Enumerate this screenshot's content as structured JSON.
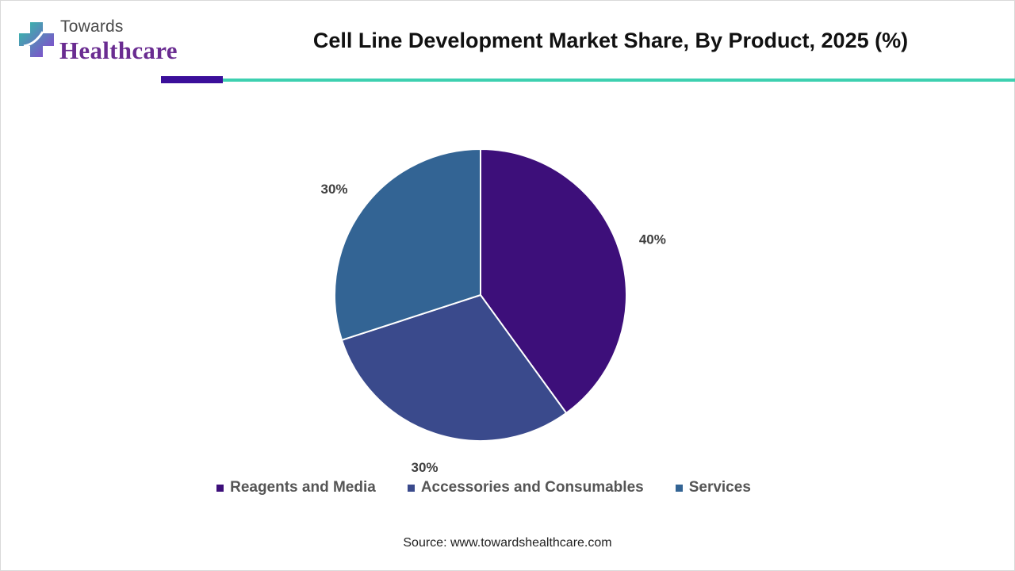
{
  "brand": {
    "top": "Towards",
    "bottom": "Healthcare",
    "colors": {
      "purple": "#6a2c91",
      "teal": "#2ec4a6",
      "violet": "#8b3fd1"
    }
  },
  "title": "Cell Line Development Market Share, By Product, 2025 (%)",
  "rules": {
    "accent_color": "#3b0f9a",
    "main_color": "#3dd0b0"
  },
  "chart_data": {
    "type": "pie",
    "title": "Cell Line Development Market Share, By Product, 2025 (%)",
    "start_angle_deg": 0,
    "direction": "clockwise",
    "slices": [
      {
        "label": "Reagents and Media",
        "value": 40,
        "display": "40%",
        "color": "#3d0f7a"
      },
      {
        "label": "Accessories and Consumables",
        "value": 30,
        "display": "30%",
        "color": "#3a4a8c"
      },
      {
        "label": "Services",
        "value": 30,
        "display": "30%",
        "color": "#336494"
      }
    ],
    "legend_position": "bottom"
  },
  "source": "Source: www.towardshealthcare.com"
}
